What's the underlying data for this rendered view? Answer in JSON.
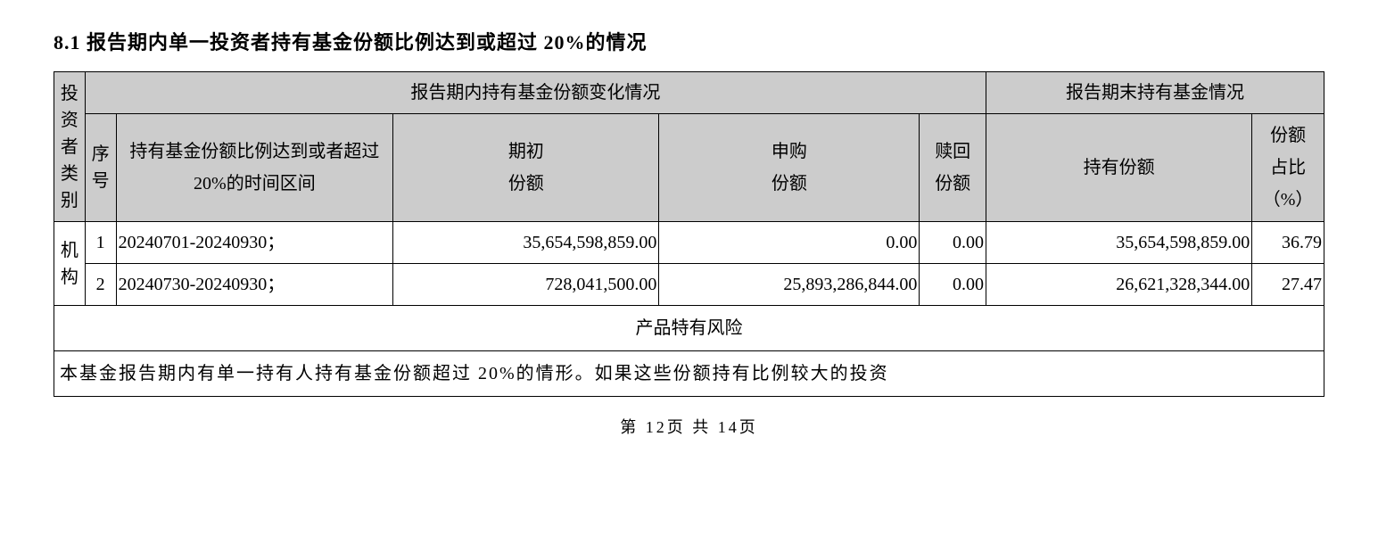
{
  "section_title": "8.1 报告期内单一投资者持有基金份额比例达到或超过 20%的情况",
  "headers": {
    "investor_type": "投资者类别",
    "group_changes": "报告期内持有基金份额变化情况",
    "group_end": "报告期末持有基金情况",
    "seq": "序号",
    "period": "持有基金份额比例达到或者超过 20%的时间区间",
    "begin_share_l1": "期初",
    "begin_share_l2": "份额",
    "buy_share_l1": "申购",
    "buy_share_l2": "份额",
    "redeem_share_l1": "赎回",
    "redeem_share_l2": "份额",
    "hold_share": "持有份额",
    "ratio_l1": "份额",
    "ratio_l2": "占比",
    "ratio_l3": "（%）"
  },
  "investor_type_label": "机构",
  "rows": [
    {
      "seq": "1",
      "period": "20240701-20240930；",
      "begin": "35,654,598,859.00",
      "buy": "0.00",
      "redeem": "0.00",
      "hold": "35,654,598,859.00",
      "ratio": "36.79"
    },
    {
      "seq": "2",
      "period": "20240730-20240930；",
      "begin": "728,041,500.00",
      "buy": "25,893,286,844.00",
      "redeem": "0.00",
      "hold": "26,621,328,344.00",
      "ratio": "27.47"
    }
  ],
  "risk_label": "产品特有风险",
  "risk_note": "本基金报告期内有单一持有人持有基金份额超过 20%的情形。如果这些份额持有比例较大的投资",
  "footer": "第  12页 共  14页",
  "colors": {
    "header_bg": "#cccccc",
    "border": "#000000",
    "text": "#000000",
    "background": "#ffffff"
  }
}
